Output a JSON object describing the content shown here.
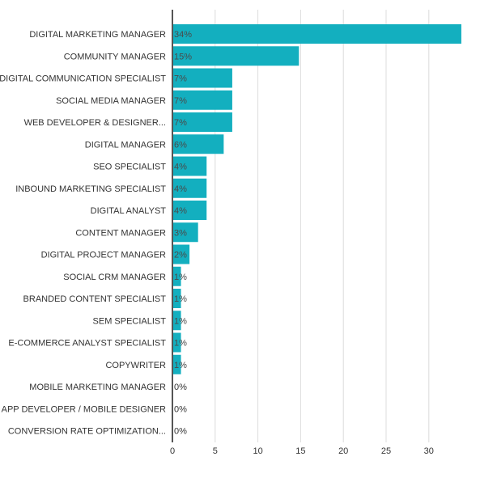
{
  "chart_data": {
    "type": "bar",
    "orientation": "horizontal",
    "categories": [
      "DIGITAL MARKETING MANAGER",
      "COMMUNITY MANAGER",
      "DIGITAL COMMUNICATION SPECIALIST",
      "SOCIAL MEDIA MANAGER",
      "WEB DEVELOPER & DESIGNER...",
      "DIGITAL MANAGER",
      "SEO SPECIALIST",
      "INBOUND MARKETING SPECIALIST",
      "DIGITAL ANALYST",
      "CONTENT MANAGER",
      "DIGITAL PROJECT MANAGER",
      "SOCIAL CRM MANAGER",
      "BRANDED CONTENT SPECIALIST",
      "SEM SPECIALIST",
      "E-COMMERCE ANALYST SPECIALIST",
      "COPYWRITER",
      "MOBILE MARKETING MANAGER",
      "APP DEVELOPER / MOBILE DESIGNER",
      "CONVERSION RATE OPTIMIZATION..."
    ],
    "values": [
      33.8,
      14.8,
      7.0,
      7.0,
      7.0,
      6.0,
      4.0,
      4.0,
      4.0,
      3.0,
      2.0,
      1.0,
      1.0,
      1.0,
      1.0,
      1.0,
      0,
      0,
      0
    ],
    "data_labels": [
      "34%",
      "15%",
      "7%",
      "7%",
      "7%",
      "6%",
      "4%",
      "4%",
      "4%",
      "3%",
      "2%",
      "1%",
      "1%",
      "1%",
      "1%",
      "1%",
      "0%",
      "0%",
      "0%"
    ],
    "xlim": [
      0,
      34
    ],
    "xticks": [
      0,
      5,
      10,
      15,
      20,
      25,
      30
    ],
    "xtick_labels": [
      "0",
      "5",
      "10",
      "15",
      "20",
      "25",
      "30"
    ],
    "title": "",
    "xlabel": "",
    "ylabel": "",
    "grid": "vertical",
    "legend": "none",
    "colors": {
      "bar": "#13afbf",
      "grid": "#dcdcdc",
      "axis": "#555555",
      "text": "#333333"
    }
  }
}
